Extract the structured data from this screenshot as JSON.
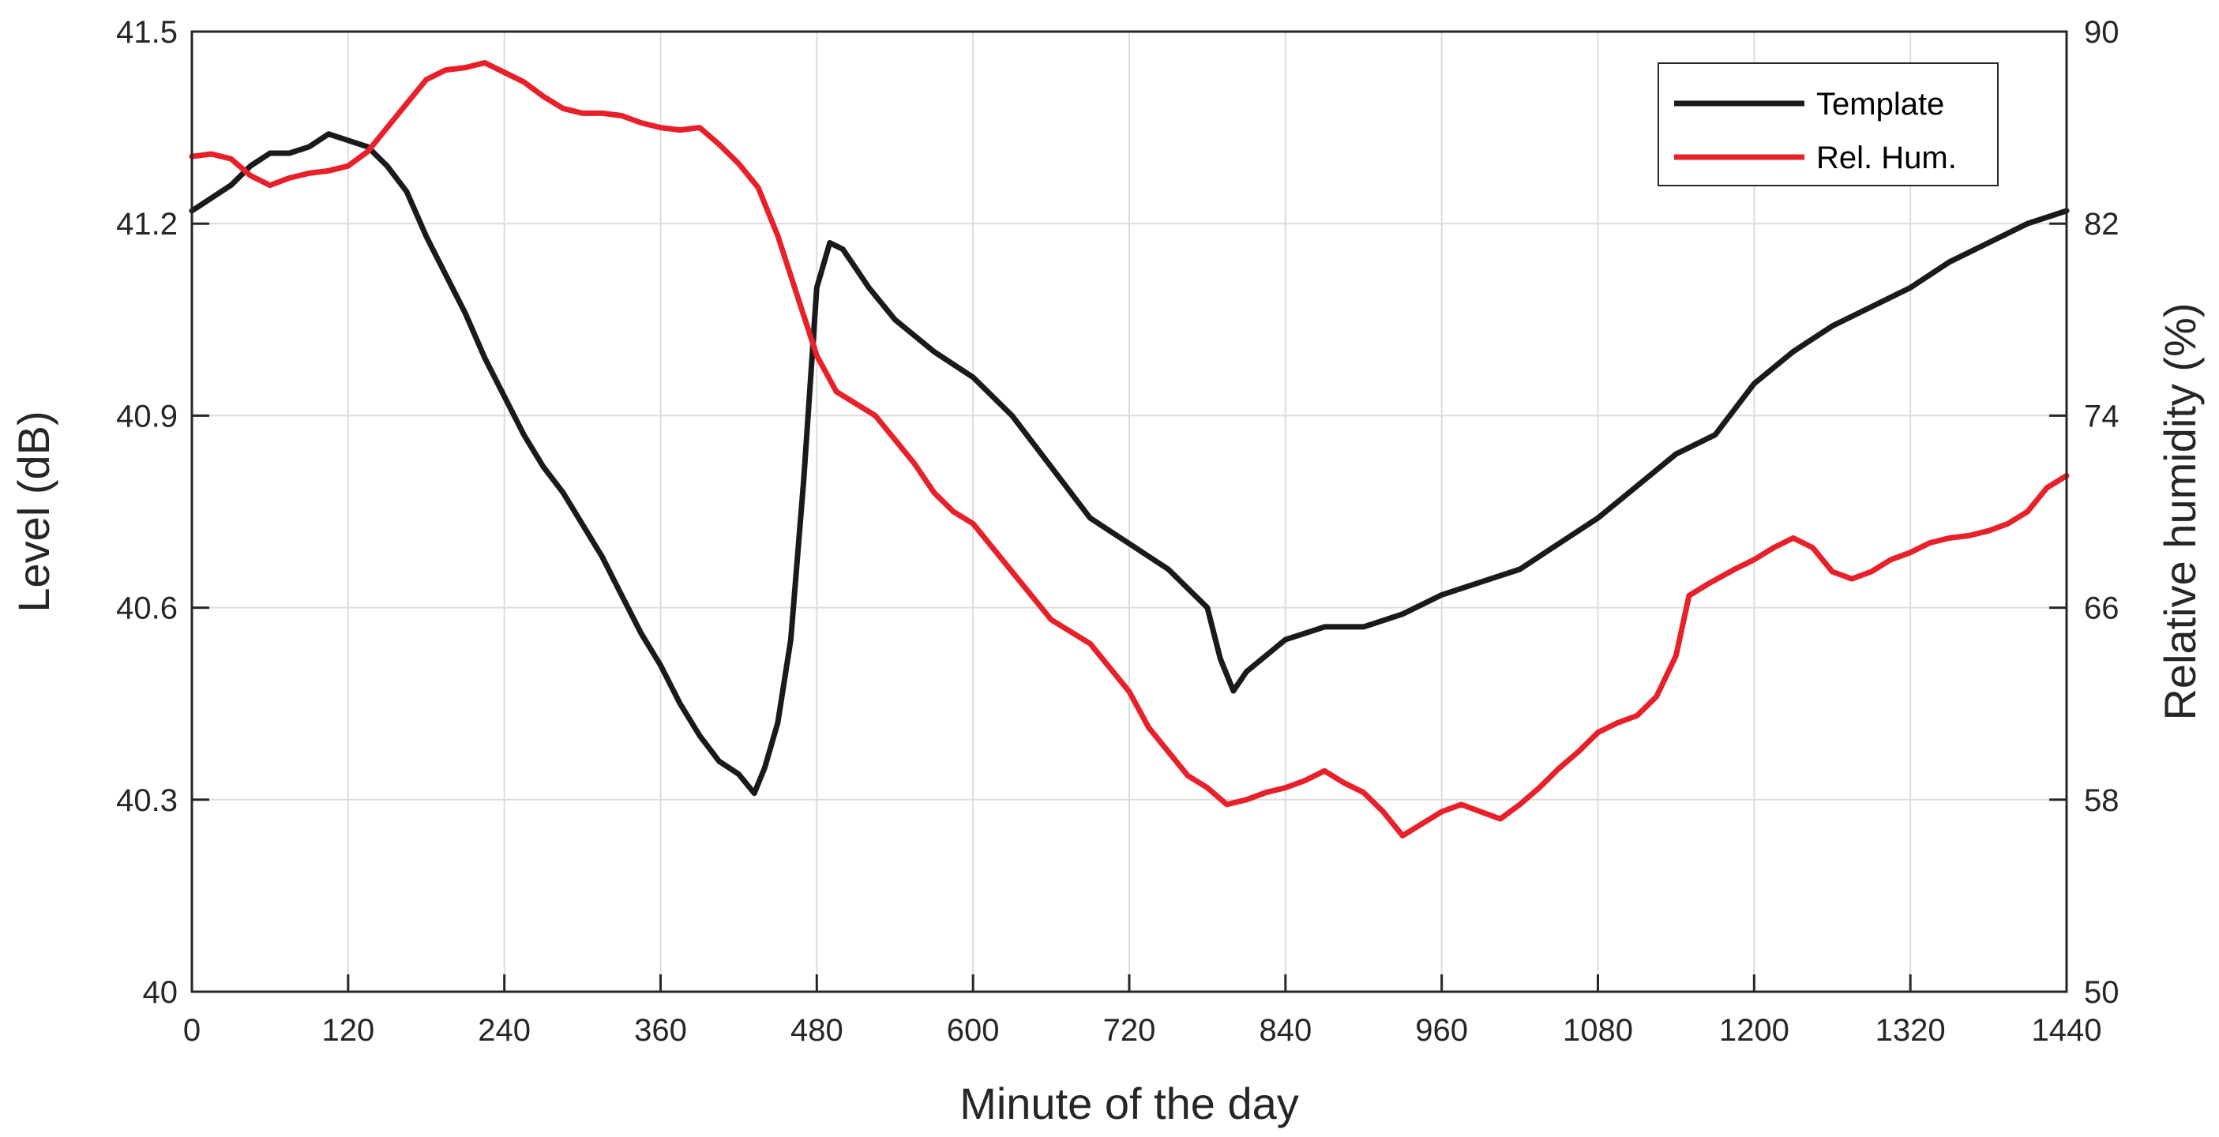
{
  "chart_data": {
    "type": "line",
    "xlabel": "Minute of the day",
    "ylabel_left": "Level (dB)",
    "ylabel_right": "Relative humidity (%)",
    "xlim": [
      0,
      1440
    ],
    "ylim_left": [
      40,
      41.5
    ],
    "ylim_right": [
      50,
      90
    ],
    "x_ticks": [
      0,
      120,
      240,
      360,
      480,
      600,
      720,
      840,
      960,
      1080,
      1200,
      1320,
      1440
    ],
    "y_ticks_left": [
      "40",
      "40.3",
      "40.6",
      "40.9",
      "41.2",
      "41.5"
    ],
    "y_ticks_right": [
      "50",
      "58",
      "66",
      "74",
      "82",
      "90"
    ],
    "grid": true,
    "legend_position": "top-right",
    "series": [
      {
        "name": "Template",
        "axis": "left",
        "color": "#1a1a1a",
        "points": [
          [
            0,
            41.22
          ],
          [
            15,
            41.24
          ],
          [
            30,
            41.26
          ],
          [
            45,
            41.29
          ],
          [
            60,
            41.31
          ],
          [
            75,
            41.31
          ],
          [
            90,
            41.32
          ],
          [
            105,
            41.34
          ],
          [
            120,
            41.33
          ],
          [
            135,
            41.32
          ],
          [
            150,
            41.29
          ],
          [
            165,
            41.25
          ],
          [
            180,
            41.18
          ],
          [
            195,
            41.12
          ],
          [
            210,
            41.06
          ],
          [
            225,
            40.99
          ],
          [
            240,
            40.93
          ],
          [
            255,
            40.87
          ],
          [
            270,
            40.82
          ],
          [
            285,
            40.78
          ],
          [
            300,
            40.73
          ],
          [
            315,
            40.68
          ],
          [
            330,
            40.62
          ],
          [
            345,
            40.56
          ],
          [
            360,
            40.51
          ],
          [
            375,
            40.45
          ],
          [
            390,
            40.4
          ],
          [
            405,
            40.36
          ],
          [
            420,
            40.34
          ],
          [
            432,
            40.31
          ],
          [
            440,
            40.35
          ],
          [
            450,
            40.42
          ],
          [
            460,
            40.55
          ],
          [
            470,
            40.8
          ],
          [
            480,
            41.1
          ],
          [
            490,
            41.17
          ],
          [
            500,
            41.16
          ],
          [
            510,
            41.13
          ],
          [
            520,
            41.1
          ],
          [
            540,
            41.05
          ],
          [
            570,
            41.0
          ],
          [
            600,
            40.96
          ],
          [
            630,
            40.9
          ],
          [
            660,
            40.82
          ],
          [
            690,
            40.74
          ],
          [
            720,
            40.7
          ],
          [
            750,
            40.66
          ],
          [
            780,
            40.6
          ],
          [
            790,
            40.52
          ],
          [
            800,
            40.47
          ],
          [
            810,
            40.5
          ],
          [
            840,
            40.55
          ],
          [
            870,
            40.57
          ],
          [
            900,
            40.57
          ],
          [
            930,
            40.59
          ],
          [
            960,
            40.62
          ],
          [
            990,
            40.64
          ],
          [
            1020,
            40.66
          ],
          [
            1050,
            40.7
          ],
          [
            1080,
            40.74
          ],
          [
            1110,
            40.79
          ],
          [
            1140,
            40.84
          ],
          [
            1170,
            40.87
          ],
          [
            1200,
            40.95
          ],
          [
            1230,
            41.0
          ],
          [
            1260,
            41.04
          ],
          [
            1290,
            41.07
          ],
          [
            1320,
            41.1
          ],
          [
            1350,
            41.14
          ],
          [
            1380,
            41.17
          ],
          [
            1410,
            41.2
          ],
          [
            1440,
            41.22
          ]
        ]
      },
      {
        "name": "Rel. Hum.",
        "axis": "right",
        "color": "#e8202a",
        "points": [
          [
            0,
            84.8
          ],
          [
            15,
            84.9
          ],
          [
            30,
            84.7
          ],
          [
            45,
            84.0
          ],
          [
            60,
            83.6
          ],
          [
            75,
            83.9
          ],
          [
            90,
            84.1
          ],
          [
            105,
            84.2
          ],
          [
            120,
            84.4
          ],
          [
            135,
            85.0
          ],
          [
            150,
            86.0
          ],
          [
            165,
            87.0
          ],
          [
            180,
            88.0
          ],
          [
            195,
            88.4
          ],
          [
            210,
            88.5
          ],
          [
            225,
            88.7
          ],
          [
            240,
            88.3
          ],
          [
            255,
            87.9
          ],
          [
            270,
            87.3
          ],
          [
            285,
            86.8
          ],
          [
            300,
            86.6
          ],
          [
            315,
            86.6
          ],
          [
            330,
            86.5
          ],
          [
            345,
            86.2
          ],
          [
            360,
            86.0
          ],
          [
            375,
            85.9
          ],
          [
            390,
            86.0
          ],
          [
            405,
            85.3
          ],
          [
            420,
            84.5
          ],
          [
            435,
            83.5
          ],
          [
            450,
            81.5
          ],
          [
            465,
            79.0
          ],
          [
            480,
            76.5
          ],
          [
            495,
            75.0
          ],
          [
            510,
            74.5
          ],
          [
            525,
            74.0
          ],
          [
            540,
            73.0
          ],
          [
            555,
            72.0
          ],
          [
            570,
            70.8
          ],
          [
            585,
            70.0
          ],
          [
            600,
            69.5
          ],
          [
            615,
            68.5
          ],
          [
            630,
            67.5
          ],
          [
            645,
            66.5
          ],
          [
            660,
            65.5
          ],
          [
            675,
            65.0
          ],
          [
            690,
            64.5
          ],
          [
            705,
            63.5
          ],
          [
            720,
            62.5
          ],
          [
            735,
            61.0
          ],
          [
            750,
            60.0
          ],
          [
            765,
            59.0
          ],
          [
            780,
            58.5
          ],
          [
            795,
            57.8
          ],
          [
            810,
            58.0
          ],
          [
            825,
            58.3
          ],
          [
            840,
            58.5
          ],
          [
            855,
            58.8
          ],
          [
            870,
            59.2
          ],
          [
            885,
            58.7
          ],
          [
            900,
            58.3
          ],
          [
            915,
            57.5
          ],
          [
            930,
            56.5
          ],
          [
            945,
            57.0
          ],
          [
            960,
            57.5
          ],
          [
            975,
            57.8
          ],
          [
            990,
            57.5
          ],
          [
            1005,
            57.2
          ],
          [
            1020,
            57.8
          ],
          [
            1035,
            58.5
          ],
          [
            1050,
            59.3
          ],
          [
            1065,
            60.0
          ],
          [
            1080,
            60.8
          ],
          [
            1095,
            61.2
          ],
          [
            1110,
            61.5
          ],
          [
            1125,
            62.3
          ],
          [
            1140,
            64.0
          ],
          [
            1150,
            66.5
          ],
          [
            1165,
            67.0
          ],
          [
            1185,
            67.6
          ],
          [
            1200,
            68.0
          ],
          [
            1215,
            68.5
          ],
          [
            1230,
            68.9
          ],
          [
            1245,
            68.5
          ],
          [
            1260,
            67.5
          ],
          [
            1275,
            67.2
          ],
          [
            1290,
            67.5
          ],
          [
            1305,
            68.0
          ],
          [
            1320,
            68.3
          ],
          [
            1335,
            68.7
          ],
          [
            1350,
            68.9
          ],
          [
            1365,
            69.0
          ],
          [
            1380,
            69.2
          ],
          [
            1395,
            69.5
          ],
          [
            1410,
            70.0
          ],
          [
            1425,
            71.0
          ],
          [
            1440,
            71.5
          ]
        ]
      }
    ]
  }
}
